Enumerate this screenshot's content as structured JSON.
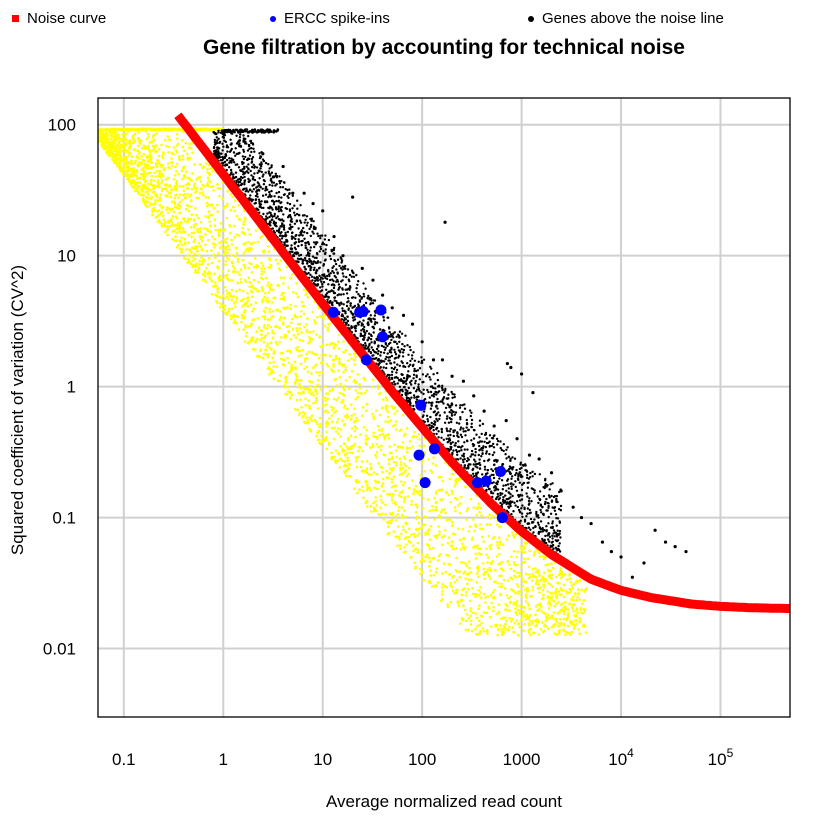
{
  "legend": [
    {
      "label": "Noise curve",
      "shape": "square",
      "color": "#ff0000"
    },
    {
      "label": "ERCC spike-ins",
      "shape": "dot",
      "color": "#0000ff"
    },
    {
      "label": "Genes above the noise line",
      "shape": "dot",
      "color": "#000000"
    }
  ],
  "chart_data": {
    "type": "scatter",
    "title": "Gene filtration by accounting for technical noise",
    "xlabel": "Average normalized read count",
    "ylabel": "Squared coefficient of variation (CV^2)",
    "x_scale": "log10",
    "y_scale": "log10",
    "xlim": [
      0.055,
      500000
    ],
    "ylim": [
      0.003,
      160
    ],
    "grid": true,
    "x_ticks": [
      {
        "value": 0.1,
        "label": "0.1"
      },
      {
        "value": 1,
        "label": "1"
      },
      {
        "value": 10,
        "label": "10"
      },
      {
        "value": 100,
        "label": "100"
      },
      {
        "value": 1000,
        "label": "1000"
      },
      {
        "value": 10000,
        "label": "10^4",
        "base": "10",
        "exp": "4"
      },
      {
        "value": 100000,
        "label": "10^5",
        "base": "10",
        "exp": "5"
      }
    ],
    "y_ticks": [
      {
        "value": 0.01,
        "label": "0.01"
      },
      {
        "value": 0.1,
        "label": "0.1"
      },
      {
        "value": 1,
        "label": "1"
      },
      {
        "value": 10,
        "label": "10"
      },
      {
        "value": 100,
        "label": "100"
      }
    ],
    "noise_curve": {
      "name": "Noise curve",
      "color": "#ff0000",
      "x": [
        0.35,
        0.5,
        1,
        2,
        5,
        10,
        20,
        50,
        100,
        200,
        500,
        1000,
        2000,
        5000,
        10000,
        20000,
        50000,
        100000,
        200000,
        500000
      ],
      "y": [
        118,
        83,
        41.8,
        21.1,
        8.52,
        4.3,
        2.21,
        0.918,
        0.488,
        0.264,
        0.127,
        0.0785,
        0.0522,
        0.0338,
        0.0278,
        0.0245,
        0.0219,
        0.021,
        0.0205,
        0.0202
      ]
    },
    "ercc_spike_ins": {
      "name": "ERCC spike-ins",
      "color": "#0000ff",
      "x": [
        12.8,
        23.5,
        25.5,
        38.5,
        40,
        27.5,
        97,
        93,
        107,
        133,
        360,
        440,
        615,
        640
      ],
      "y": [
        3.7,
        3.7,
        3.75,
        3.85,
        2.4,
        1.6,
        0.72,
        0.3,
        0.185,
        0.335,
        0.185,
        0.19,
        0.225,
        0.1
      ]
    },
    "genes_above_noise_line": {
      "name": "Genes above the noise line",
      "color": "#000000",
      "x": [
        2.5,
        3.2,
        4,
        5,
        6.5,
        8,
        10,
        13,
        16,
        20,
        25,
        32,
        40,
        50,
        65,
        80,
        100,
        130,
        160,
        200,
        260,
        330,
        420,
        530,
        700,
        900,
        1200,
        1500,
        2000,
        2500,
        3300,
        4000,
        5000,
        6500,
        8000,
        10000,
        13000,
        17000,
        22000,
        28000,
        35000,
        45000,
        170,
        190,
        720,
        780,
        1000,
        1300
      ],
      "y": [
        60,
        40,
        48,
        30,
        30,
        25,
        22,
        14,
        10,
        28,
        8,
        6.5,
        5,
        4,
        3.5,
        3,
        2.2,
        1.6,
        1.6,
        1.2,
        1.1,
        0.85,
        0.65,
        0.5,
        0.55,
        0.4,
        0.3,
        0.28,
        0.22,
        0.16,
        0.12,
        0.1,
        0.09,
        0.065,
        0.055,
        0.05,
        0.035,
        0.045,
        0.08,
        0.065,
        0.06,
        0.055,
        18,
        0.7,
        1.5,
        1.4,
        1.25,
        0.9
      ]
    },
    "genes_below_noise_line": {
      "color": "#ffff00"
    }
  }
}
